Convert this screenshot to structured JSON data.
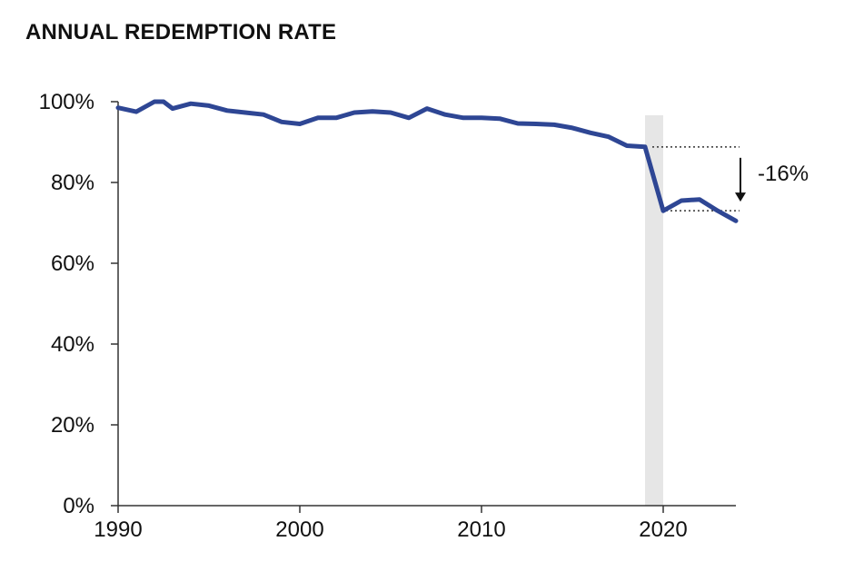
{
  "chart_data": {
    "type": "line",
    "title": "ANNUAL REDEMPTION RATE",
    "xlabel": "",
    "ylabel": "",
    "xlim": [
      1990,
      2024
    ],
    "ylim": [
      0,
      100
    ],
    "x_ticks": [
      1990,
      2000,
      2010,
      2020
    ],
    "x_tick_labels": [
      "1990",
      "2000",
      "2010",
      "2020"
    ],
    "y_ticks": [
      0,
      20,
      40,
      60,
      80,
      100
    ],
    "y_tick_labels": [
      "0%",
      "20%",
      "40%",
      "60%",
      "80%",
      "100%"
    ],
    "grid": false,
    "series": [
      {
        "color": "#2e4694",
        "x": [
          1990,
          1991,
          1992,
          1992.5,
          1993,
          1994,
          1995,
          1996,
          1997,
          1998,
          1999,
          2000,
          2001,
          2002,
          2003,
          2004,
          2005,
          2006,
          2007,
          2008,
          2009,
          2010,
          2011,
          2012,
          2013,
          2014,
          2015,
          2016,
          2017,
          2018,
          2019,
          2020,
          2021,
          2022,
          2023,
          2024
        ],
        "y": [
          98.5,
          97.5,
          100,
          100,
          98.3,
          99.5,
          99,
          97.8,
          97.3,
          96.8,
          95,
          94.5,
          96,
          96,
          97.3,
          97.6,
          97.3,
          96,
          98.3,
          96.8,
          96,
          96,
          95.8,
          94.6,
          94.5,
          94.3,
          93.5,
          92.3,
          91.3,
          89.1,
          88.8,
          73,
          75.5,
          75.8,
          73,
          70.5
        ]
      }
    ],
    "shaded_region": {
      "x_start": 2019,
      "x_end": 2020,
      "color": "#e6e6e6"
    },
    "annotation": {
      "label": "-16%",
      "from_value": 88.8,
      "to_value": 73,
      "x_start": 2019,
      "x_end": 2024
    }
  }
}
